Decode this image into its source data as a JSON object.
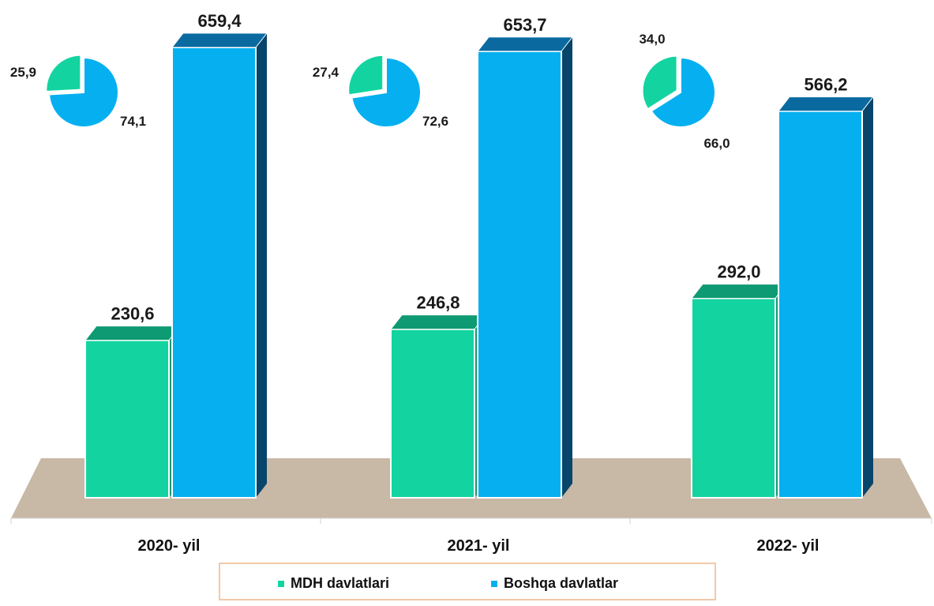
{
  "chart_data": {
    "type": "bar",
    "categories": [
      "2020- yil",
      "2021- yil",
      "2022- yil"
    ],
    "series": [
      {
        "name": "MDH davlatlari",
        "values": [
          230.6,
          246.8,
          292.0
        ],
        "labels": [
          "230,6",
          "246,8",
          "292,0"
        ],
        "color": "#13d4a0"
      },
      {
        "name": "Boshqa davlatlar",
        "values": [
          659.4,
          653.7,
          566.2
        ],
        "labels": [
          "659,4",
          "653,7",
          "566,2"
        ],
        "color": "#06b0f0"
      }
    ],
    "pies": [
      {
        "category": "2020- yil",
        "slices": [
          {
            "series": "MDH davlatlari",
            "value": 25.9,
            "label": "25,9"
          },
          {
            "series": "Boshqa davlatlar",
            "value": 74.1,
            "label": "74,1"
          }
        ]
      },
      {
        "category": "2021- yil",
        "slices": [
          {
            "series": "MDH davlatlari",
            "value": 27.4,
            "label": "27,4"
          },
          {
            "series": "Boshqa davlatlar",
            "value": 72.6,
            "label": "72,6"
          }
        ]
      },
      {
        "category": "2022- yil",
        "slices": [
          {
            "series": "MDH davlatlari",
            "value": 34.0,
            "label": "34,0"
          },
          {
            "series": "Boshqa davlatlar",
            "value": 66.0,
            "label": "66,0"
          }
        ]
      }
    ],
    "legend": {
      "placement": "bottom",
      "items": [
        "MDH davlatlari",
        "Boshqa davlatlar"
      ]
    },
    "grid": false,
    "ylim": [
      0,
      700
    ],
    "colors": {
      "mdh_top": "#0e9a72",
      "boshqa_top": "#0a6aa0",
      "boshqa_side": "#07456b",
      "floor": "#c8b8a6",
      "legend_border": "#f2c9a8"
    }
  }
}
